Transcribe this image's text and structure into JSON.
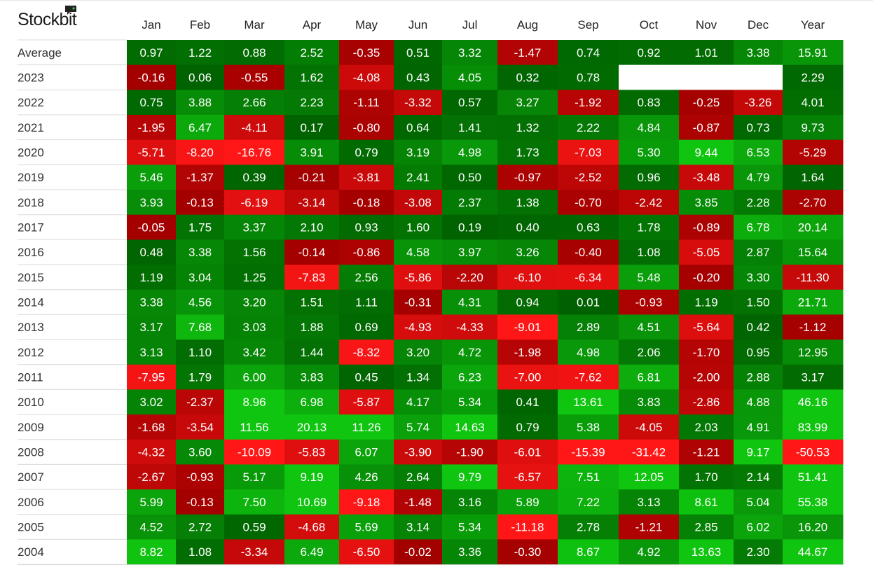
{
  "brand": {
    "name": "Stockbit"
  },
  "chart_data": {
    "type": "heatmap",
    "columns": [
      "Jan",
      "Feb",
      "Mar",
      "Apr",
      "May",
      "Jun",
      "Jul",
      "Aug",
      "Sep",
      "Oct",
      "Nov",
      "Dec",
      "Year"
    ],
    "rows": [
      {
        "label": "Average",
        "values": [
          0.97,
          1.22,
          0.88,
          2.52,
          -0.35,
          0.51,
          3.32,
          -1.47,
          0.74,
          0.92,
          1.01,
          3.38,
          15.91
        ]
      },
      {
        "label": "2023",
        "values": [
          -0.16,
          0.06,
          -0.55,
          1.62,
          -4.08,
          0.43,
          4.05,
          0.32,
          0.78,
          null,
          null,
          null,
          2.29
        ]
      },
      {
        "label": "2022",
        "values": [
          0.75,
          3.88,
          2.66,
          2.23,
          -1.11,
          -3.32,
          0.57,
          3.27,
          -1.92,
          0.83,
          -0.25,
          -3.26,
          4.01
        ]
      },
      {
        "label": "2021",
        "values": [
          -1.95,
          6.47,
          -4.11,
          0.17,
          -0.8,
          0.64,
          1.41,
          1.32,
          2.22,
          4.84,
          -0.87,
          0.73,
          9.73
        ]
      },
      {
        "label": "2020",
        "values": [
          -5.71,
          -8.2,
          -16.76,
          3.91,
          0.79,
          3.19,
          4.98,
          1.73,
          -7.03,
          5.3,
          9.44,
          6.53,
          -5.29
        ]
      },
      {
        "label": "2019",
        "values": [
          5.46,
          -1.37,
          0.39,
          -0.21,
          -3.81,
          2.41,
          0.5,
          -0.97,
          -2.52,
          0.96,
          -3.48,
          4.79,
          1.64
        ]
      },
      {
        "label": "2018",
        "values": [
          3.93,
          -0.13,
          -6.19,
          -3.14,
          -0.18,
          -3.08,
          2.37,
          1.38,
          -0.7,
          -2.42,
          3.85,
          2.28,
          -2.7
        ]
      },
      {
        "label": "2017",
        "values": [
          -0.05,
          1.75,
          3.37,
          2.1,
          0.93,
          1.6,
          0.19,
          0.4,
          0.63,
          1.78,
          -0.89,
          6.78,
          20.14
        ]
      },
      {
        "label": "2016",
        "values": [
          0.48,
          3.38,
          1.56,
          -0.14,
          -0.86,
          4.58,
          3.97,
          3.26,
          -0.4,
          1.08,
          -5.05,
          2.87,
          15.64
        ]
      },
      {
        "label": "2015",
        "values": [
          1.19,
          3.04,
          1.25,
          -7.83,
          2.56,
          -5.86,
          -2.2,
          -6.1,
          -6.34,
          5.48,
          -0.2,
          3.3,
          -11.3
        ]
      },
      {
        "label": "2014",
        "values": [
          3.38,
          4.56,
          3.2,
          1.51,
          1.11,
          -0.31,
          4.31,
          0.94,
          0.01,
          -0.93,
          1.19,
          1.5,
          21.71
        ]
      },
      {
        "label": "2013",
        "values": [
          3.17,
          7.68,
          3.03,
          1.88,
          0.69,
          -4.93,
          -4.33,
          -9.01,
          2.89,
          4.51,
          -5.64,
          0.42,
          -1.12
        ]
      },
      {
        "label": "2012",
        "values": [
          3.13,
          1.1,
          3.42,
          1.44,
          -8.32,
          3.2,
          4.72,
          -1.98,
          4.98,
          2.06,
          -1.7,
          0.95,
          12.95
        ]
      },
      {
        "label": "2011",
        "values": [
          -7.95,
          1.79,
          6.0,
          3.83,
          0.45,
          1.34,
          6.23,
          -7.0,
          -7.62,
          6.81,
          -2.0,
          2.88,
          3.17
        ]
      },
      {
        "label": "2010",
        "values": [
          3.02,
          -2.37,
          8.96,
          6.98,
          -5.87,
          4.17,
          5.34,
          0.41,
          13.61,
          3.83,
          -2.86,
          4.88,
          46.16
        ]
      },
      {
        "label": "2009",
        "values": [
          -1.68,
          -3.54,
          11.56,
          20.13,
          11.26,
          5.74,
          14.63,
          0.79,
          5.38,
          -4.05,
          2.03,
          4.91,
          83.99
        ]
      },
      {
        "label": "2008",
        "values": [
          -4.32,
          3.6,
          -10.09,
          -5.83,
          6.07,
          -3.9,
          -1.9,
          -6.01,
          -15.39,
          -31.42,
          -1.21,
          9.17,
          -50.53
        ]
      },
      {
        "label": "2007",
        "values": [
          -2.67,
          -0.93,
          5.17,
          9.19,
          4.26,
          2.64,
          9.79,
          -6.57,
          7.51,
          12.05,
          1.7,
          2.14,
          51.41
        ]
      },
      {
        "label": "2006",
        "values": [
          5.99,
          -0.13,
          7.5,
          10.69,
          -9.18,
          -1.48,
          3.16,
          5.89,
          7.22,
          3.13,
          8.61,
          5.04,
          55.38
        ]
      },
      {
        "label": "2005",
        "values": [
          4.52,
          2.72,
          0.59,
          -4.68,
          5.69,
          3.14,
          5.34,
          -11.18,
          2.78,
          -1.21,
          2.85,
          6.02,
          16.2
        ]
      },
      {
        "label": "2004",
        "values": [
          8.82,
          1.08,
          -3.34,
          6.49,
          -6.5,
          -0.02,
          3.36,
          -0.3,
          8.67,
          4.92,
          13.63,
          2.3,
          44.67
        ]
      }
    ],
    "colors": {
      "positive_dark": "#006100",
      "positive_light": "#10c510",
      "negative_dark": "#a30000",
      "negative_light": "#ff1717",
      "text_on_cell": "#ffffff",
      "row_label": "#333333",
      "header": "#222222",
      "grid_line": "#d9d9d9"
    }
  }
}
